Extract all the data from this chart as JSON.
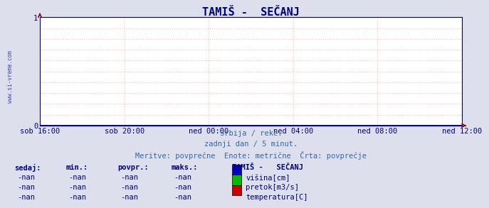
{
  "title": "TAMIŠ -  SEČANJ",
  "bg_color": "#dde0ec",
  "plot_bg_color": "#ffffff",
  "grid_color_dotted": "#ffbbbb",
  "grid_color_solid": "#ffcccc",
  "title_color": "#000080",
  "tick_color": "#000080",
  "watermark": "www.si-vreme.com",
  "watermark_color": "#4444aa",
  "x_labels": [
    "sob 16:00",
    "sob 20:00",
    "ned 00:00",
    "ned 04:00",
    "ned 08:00",
    "ned 12:00"
  ],
  "x_positions": [
    0.0,
    0.2,
    0.4,
    0.6,
    0.8,
    1.0
  ],
  "ylim": [
    0,
    1
  ],
  "yticks": [
    0,
    1
  ],
  "arrow_color": "#880000",
  "line_color": "#0000cc",
  "subtitle1": "Srbija / reke.",
  "subtitle2": "zadnji dan / 5 minut.",
  "subtitle3": "Meritve: povprečne  Enote: metrične  Črta: povprečje",
  "subtitle_color": "#3366aa",
  "table_headers": [
    "sedaj:",
    "min.:",
    "povpr.:",
    "maks.:"
  ],
  "table_values": [
    "-nan",
    "-nan",
    "-nan",
    "-nan"
  ],
  "legend_title": "TAMIŠ -   SEČANJ",
  "legend_items": [
    {
      "label": "višina[cm]",
      "color": "#0000cc"
    },
    {
      "label": "pretok[m3/s]",
      "color": "#00bb00"
    },
    {
      "label": "temperatura[C]",
      "color": "#cc0000"
    }
  ],
  "table_color": "#000080",
  "legend_title_color": "#000080",
  "font_family": "monospace"
}
